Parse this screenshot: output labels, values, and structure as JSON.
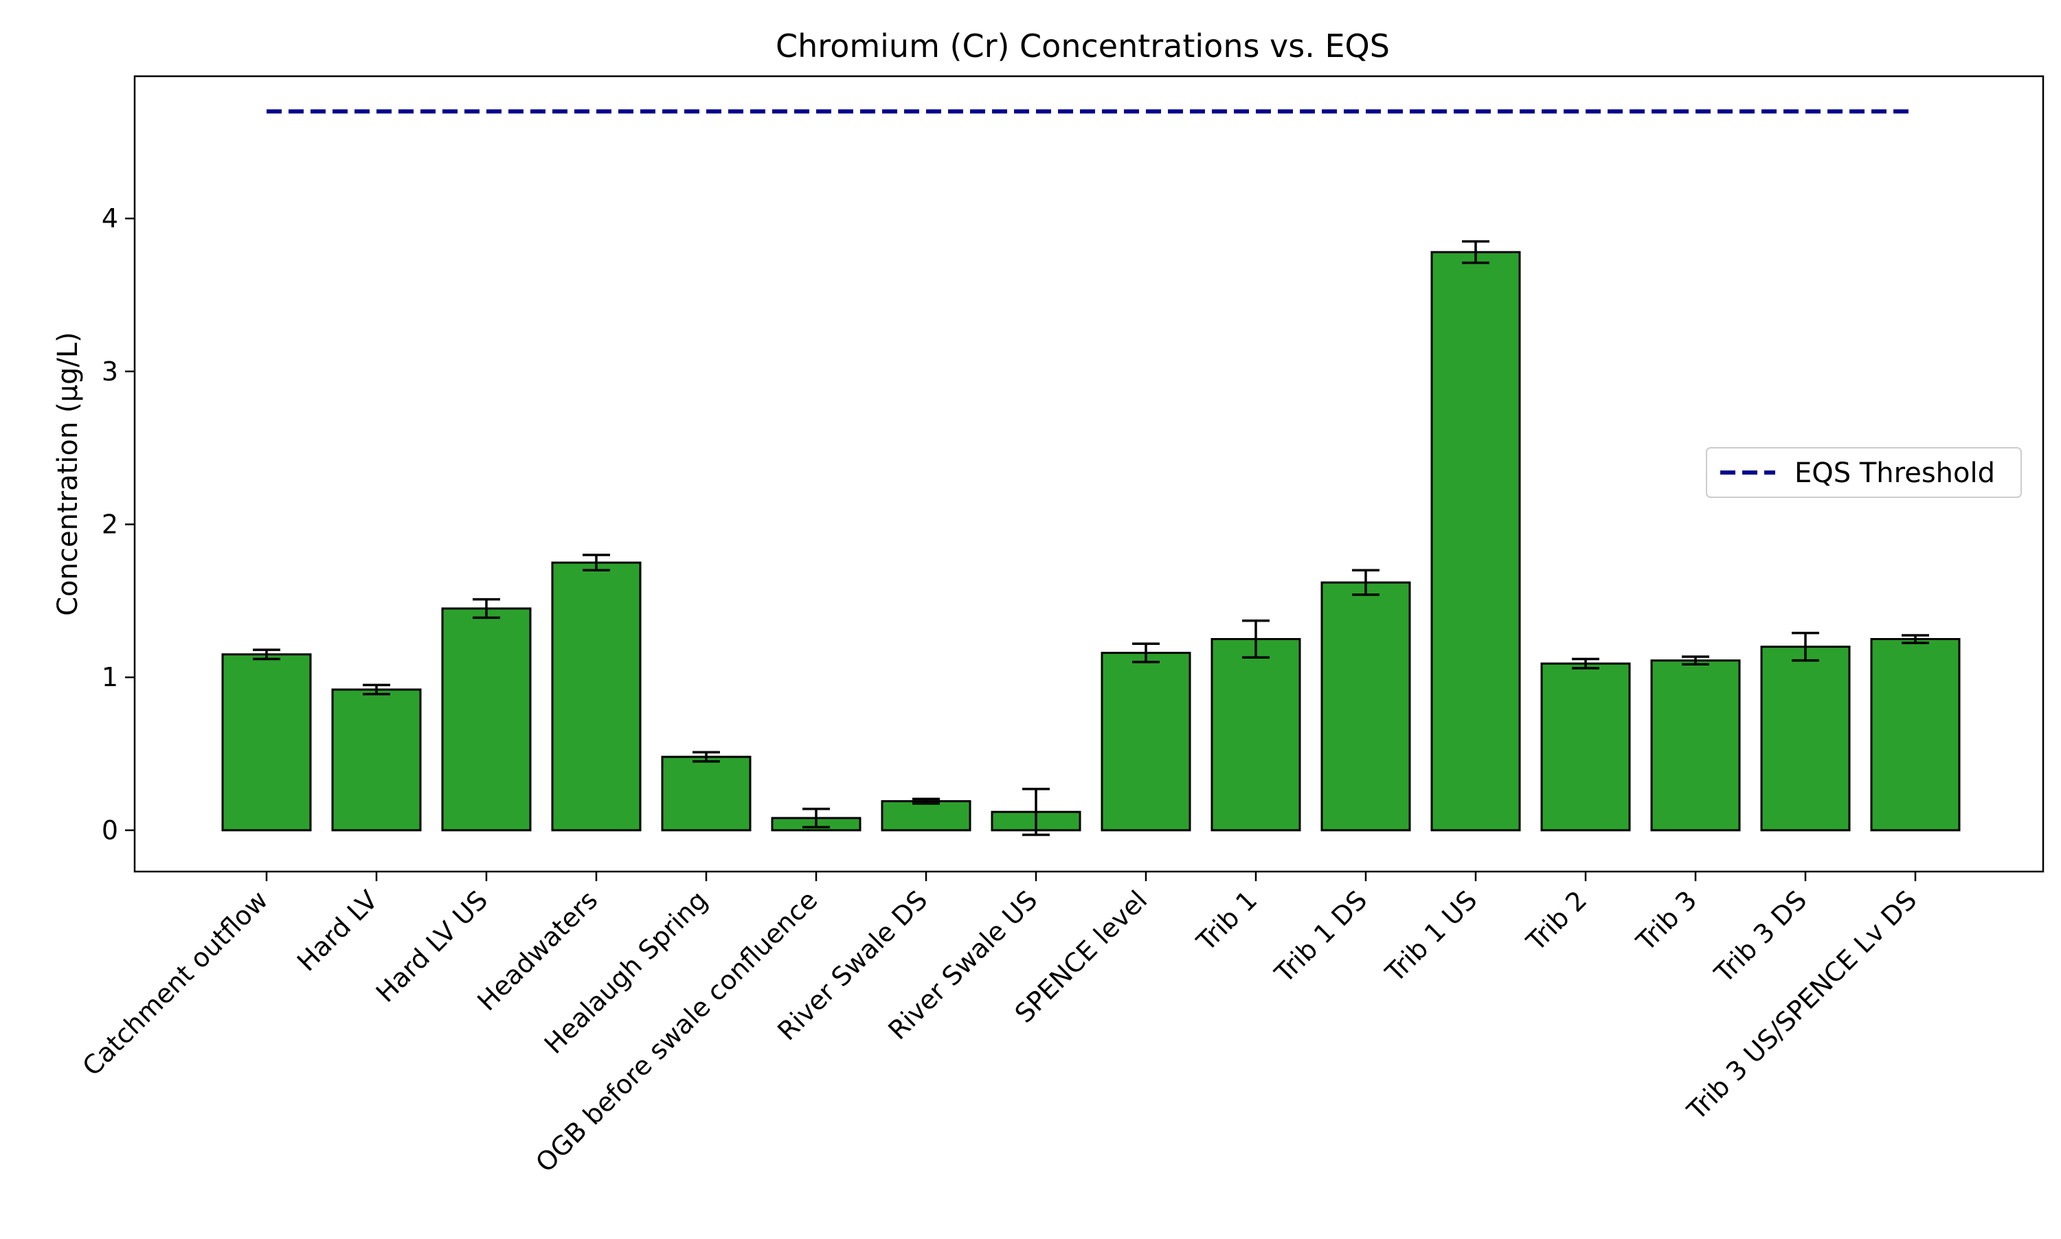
{
  "chart_data": {
    "type": "bar",
    "title": "Chromium (Cr) Concentrations vs. EQS",
    "xlabel": "",
    "ylabel": "Concentration (µg/L)",
    "ylim": [
      -0.27,
      4.93
    ],
    "yticks": [
      0,
      1,
      2,
      3,
      4
    ],
    "grid": false,
    "legend_position": "center-right",
    "categories": [
      "Catchment outflow",
      "Hard LV",
      "Hard LV US",
      "Headwaters",
      "Healaugh Spring",
      "OGB before swale confluence",
      "River Swale DS",
      "River Swale US",
      "SPENCE level",
      "Trib 1",
      "Trib 1 DS",
      "Trib 1 US",
      "Trib 2",
      "Trib 3",
      "Trib 3 DS",
      "Trib 3 US/SPENCE Lv DS"
    ],
    "series": [
      {
        "values": [
          1.15,
          0.92,
          1.45,
          1.75,
          0.48,
          0.08,
          0.19,
          0.12,
          1.16,
          1.25,
          1.62,
          3.78,
          1.09,
          1.11,
          1.2,
          1.25
        ],
        "errors": [
          0.03,
          0.03,
          0.06,
          0.05,
          0.03,
          0.06,
          0.015,
          0.15,
          0.06,
          0.12,
          0.08,
          0.07,
          0.03,
          0.025,
          0.09,
          0.025
        ]
      }
    ],
    "threshold": {
      "name": "EQS Threshold",
      "value": 4.7
    },
    "colors": {
      "bar_fill": "#2ca02c",
      "bar_edge": "#000000",
      "error_bar": "#000000",
      "threshold": "#00008b"
    }
  }
}
